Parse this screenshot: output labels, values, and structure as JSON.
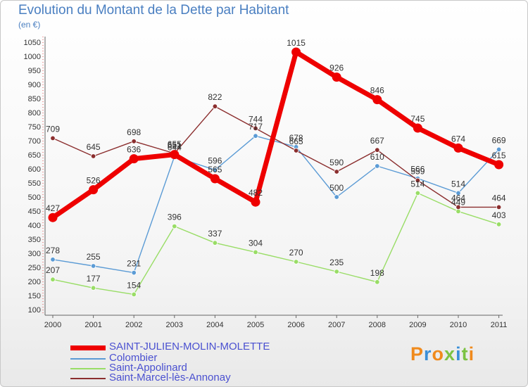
{
  "title": "Evolution du Montant de la Dette par Habitant",
  "subtitle": "(en €)",
  "logo": "Proxiti",
  "chart_data": {
    "type": "line",
    "title": "Evolution du Montant de la Dette par Habitant",
    "ylabel": "(en €)",
    "xlabel": "",
    "ylim": [
      100,
      1050
    ],
    "ytick_step": 50,
    "grid": false,
    "legend_position": "bottom-left",
    "x": [
      "2000",
      "2001",
      "2002",
      "2003",
      "2004",
      "2005",
      "2006",
      "2007",
      "2008",
      "2009",
      "2010",
      "2011"
    ],
    "series": [
      {
        "name": "SAINT-JULIEN-MOLIN-MOLETTE",
        "color": "#ee0000",
        "values": [
          427,
          526,
          636,
          651,
          565,
          482,
          1015,
          926,
          846,
          745,
          674,
          615
        ],
        "labels": [
          "427",
          "526",
          "636",
          "651",
          "565",
          "482",
          "1015",
          "926",
          "846",
          "745",
          "674",
          "615"
        ]
      },
      {
        "name": "Colombier",
        "color": "#5b9bd5",
        "values": [
          278,
          255,
          231,
          644,
          596,
          717,
          678,
          500,
          610,
          566,
          514,
          669
        ],
        "labels": [
          "278",
          "255",
          "231",
          "644",
          "596",
          "717",
          "678",
          "500",
          "610",
          "566",
          "514",
          "669"
        ]
      },
      {
        "name": "Saint-Appolinard",
        "color": "#99dd66",
        "values": [
          207,
          177,
          154,
          396,
          337,
          304,
          270,
          235,
          198,
          514,
          449,
          403
        ],
        "labels": [
          "207",
          "177",
          "154",
          "396",
          "337",
          "304",
          "270",
          "235",
          "198",
          "514",
          "449",
          "403"
        ]
      },
      {
        "name": "Saint-Marcel-lès-Annonay",
        "color": "#8b2e2e",
        "values": [
          709,
          645,
          698,
          655,
          822,
          744,
          665,
          590,
          667,
          559,
          464,
          464
        ],
        "labels": [
          "709",
          "645",
          "698",
          "655",
          "822",
          "744",
          "665",
          "590",
          "667",
          "559",
          "464",
          "464"
        ]
      }
    ]
  }
}
